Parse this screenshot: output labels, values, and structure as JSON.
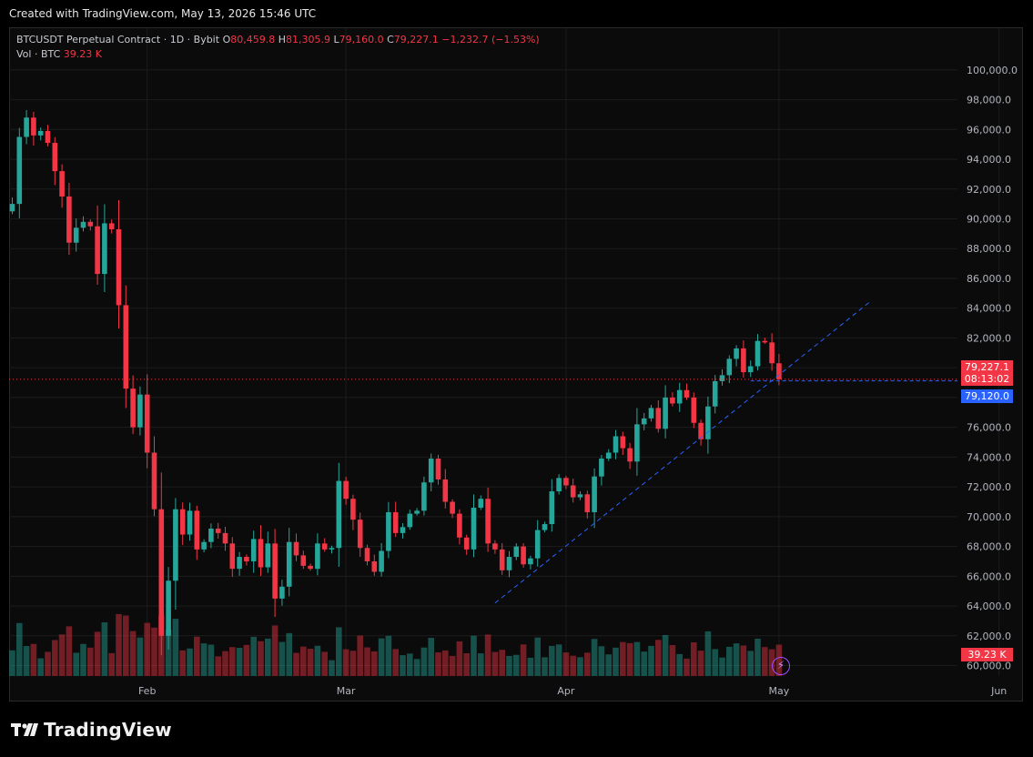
{
  "banner": "Created with TradingView.com, May 13, 2026 15:46 UTC",
  "legend": {
    "symbol": "BTCUSDT Perpetual Contract · 1D · Bybit",
    "o_label": "O",
    "o_value": "80,459.8",
    "h_label": "H",
    "h_value": "81,305.9",
    "l_label": "L",
    "l_value": "79,160.0",
    "c_label": "C",
    "c_value": "79,227.1",
    "change": "−1,232.7 (−1.53%)",
    "vol_label": "Vol · BTC",
    "vol_value": "39.23 K"
  },
  "price_tags": {
    "last_price": "79,227.1",
    "countdown": "08:13:02",
    "line_price": "79,120.0",
    "volume": "39.23 K"
  },
  "logo_text": "TradingView",
  "colors": {
    "up": "#26a69a",
    "down": "#f23645",
    "trendline": "#2962ff",
    "background": "#0b0b0b"
  },
  "chart_data": {
    "type": "candlestick",
    "interval": "1D",
    "y_axis": {
      "ticks": [
        60000,
        62000,
        64000,
        66000,
        68000,
        70000,
        72000,
        74000,
        76000,
        78000,
        80000,
        82000,
        84000,
        86000,
        88000,
        90000,
        92000,
        94000,
        96000,
        98000,
        100000
      ],
      "tick_labels": [
        "60,000.0",
        "62,000.0",
        "64,000.0",
        "66,000.0",
        "68,000.0",
        "70,000.0",
        "72,000.0",
        "74,000.0",
        "76,000.0",
        "78,000.0",
        "80,000.0",
        "82,000.0",
        "84,000.0",
        "86,000.0",
        "88,000.0",
        "90,000.0",
        "92,000.0",
        "94,000.0",
        "96,000.0",
        "98,000.0",
        "100,000.0"
      ],
      "range": [
        59300,
        102800
      ]
    },
    "x_axis": {
      "labels": [
        {
          "text": "Feb",
          "date": "2026-02-01"
        },
        {
          "text": "Mar",
          "date": "2026-03-01"
        },
        {
          "text": "Apr",
          "date": "2026-04-01"
        },
        {
          "text": "May",
          "date": "2026-05-01"
        },
        {
          "text": "Jun",
          "date": "2026-06-01"
        }
      ]
    },
    "start_date": "2026-01-13",
    "closes": [
      91000,
      95500,
      96800,
      95600,
      95900,
      95100,
      93200,
      91500,
      88400,
      89400,
      89800,
      89500,
      86300,
      89700,
      89300,
      84200,
      78600,
      76000,
      78200,
      74300,
      70500,
      62000,
      65700,
      70500,
      68800,
      70400,
      67800,
      68300,
      69200,
      68900,
      68200,
      66500,
      67300,
      67000,
      68500,
      66600,
      68200,
      64500,
      65300,
      68300,
      67400,
      66700,
      66500,
      68200,
      67800,
      67900,
      72400,
      71200,
      69800,
      67900,
      67000,
      66300,
      67700,
      70300,
      68900,
      69300,
      70200,
      70400,
      72300,
      73900,
      72500,
      71000,
      70200,
      68600,
      67800,
      70600,
      71200,
      68200,
      67800,
      66400,
      67300,
      68000,
      66800,
      67200,
      69100,
      69500,
      71700,
      72600,
      72100,
      71300,
      71500,
      70300,
      72700,
      73900,
      74300,
      75400,
      74600,
      73700,
      76200,
      76600,
      77300,
      75900,
      78000,
      77600,
      78500,
      78000,
      76300,
      75200,
      77400,
      79100,
      79500,
      80600,
      81300,
      79700,
      80100,
      81800,
      81700,
      80300,
      79227.1
    ],
    "volume_last": 39230
  }
}
